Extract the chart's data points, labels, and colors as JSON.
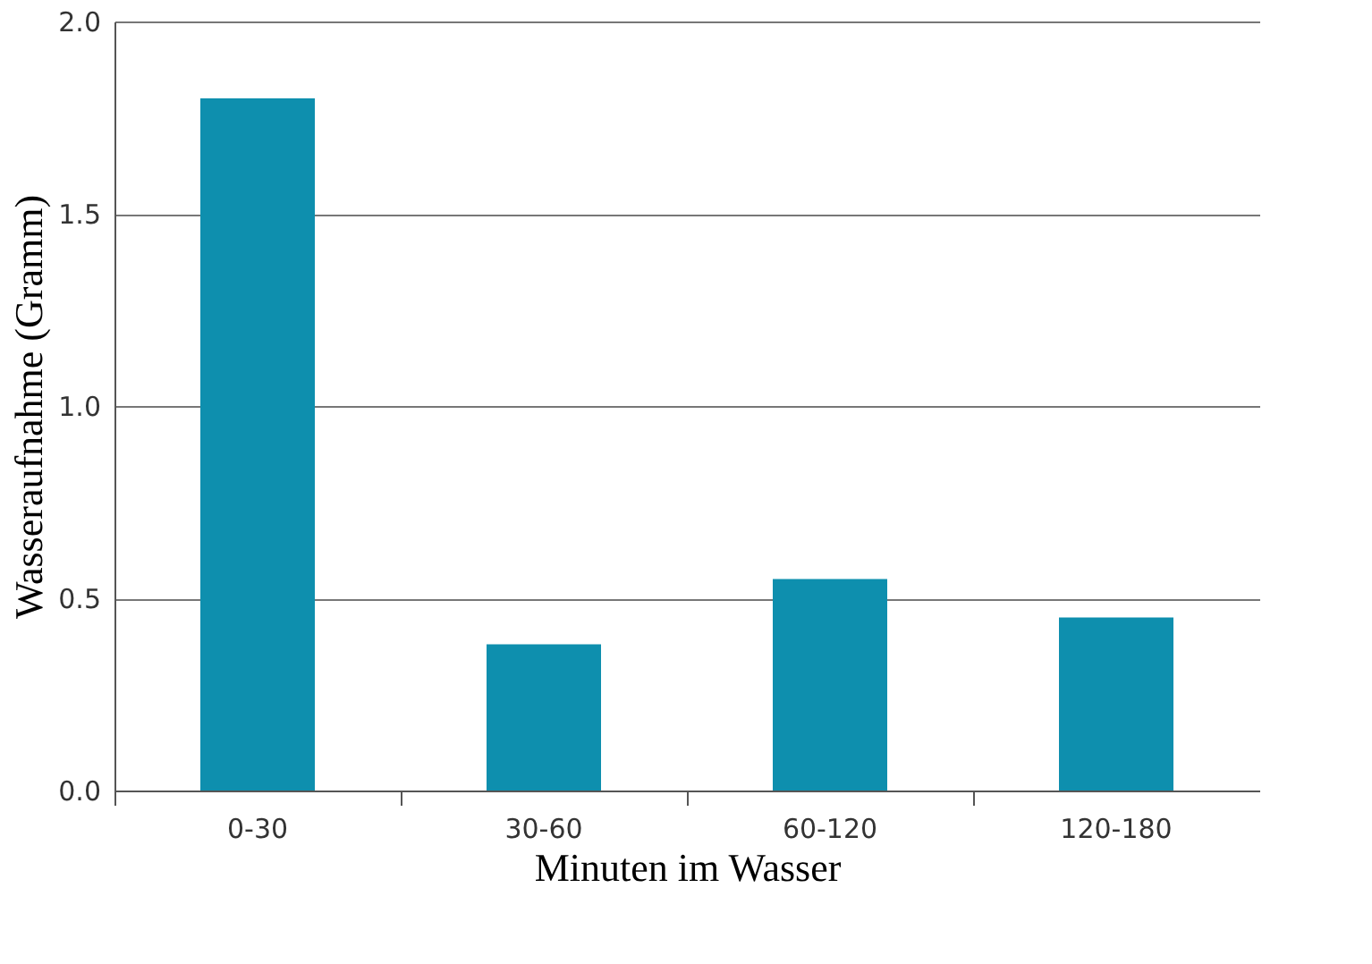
{
  "chart_data": {
    "type": "bar",
    "xlabel": "Minuten im Wasser",
    "ylabel": "Wasseraufnahme (Gramm)",
    "categories": [
      "0-30",
      "30-60",
      "60-120",
      "120-180"
    ],
    "values": [
      1.8,
      0.38,
      0.55,
      0.45
    ],
    "color": "#0e8fae",
    "ylim": [
      0,
      2.0
    ],
    "yticks": [
      {
        "value": 0,
        "label": "0.0"
      },
      {
        "value": 0.5,
        "label": "0.5"
      },
      {
        "value": 1.0,
        "label": "1.0"
      },
      {
        "value": 1.5,
        "label": "1.5"
      },
      {
        "value": 2.0,
        "label": "2.0"
      }
    ],
    "grid": "y"
  }
}
